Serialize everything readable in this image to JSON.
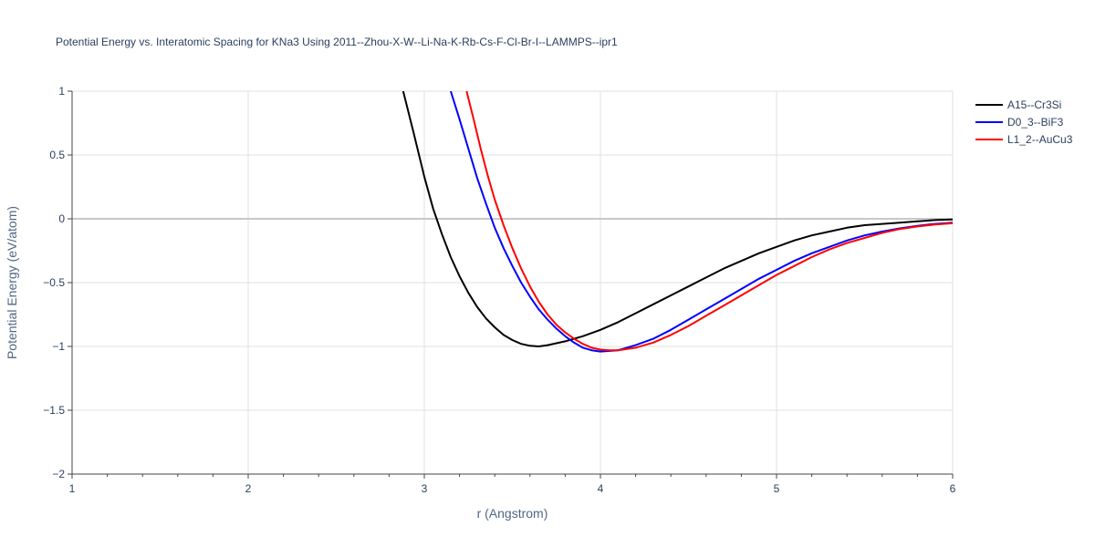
{
  "chart_data": {
    "type": "line",
    "title": "Potential Energy vs. Interatomic Spacing for KNa3 Using 2011--Zhou-X-W--Li-Na-K-Rb-Cs-F-Cl-Br-I--LAMMPS--ipr1",
    "xlabel": "r (Angstrom)",
    "ylabel": "Potential Energy (eV/atom)",
    "xlim": [
      1,
      6
    ],
    "ylim": [
      -2,
      1
    ],
    "xticks": [
      1,
      2,
      3,
      4,
      5,
      6
    ],
    "xtick_labels": [
      "1",
      "2",
      "3",
      "4",
      "5",
      "6"
    ],
    "yticks": [
      -2,
      -1.5,
      -1,
      -0.5,
      0,
      0.5,
      1
    ],
    "ytick_labels": [
      "−2",
      "−1.5",
      "−1",
      "−0.5",
      "0",
      "0.5",
      "1"
    ],
    "grid": true,
    "legend_position": "top-right",
    "series": [
      {
        "name": "A15--Cr3Si",
        "color": "#000000",
        "x": [
          2.88,
          2.94,
          3.0,
          3.05,
          3.1,
          3.15,
          3.2,
          3.25,
          3.3,
          3.35,
          3.4,
          3.45,
          3.5,
          3.55,
          3.6,
          3.65,
          3.7,
          3.8,
          3.9,
          4.0,
          4.1,
          4.2,
          4.3,
          4.4,
          4.5,
          4.6,
          4.7,
          4.8,
          4.9,
          5.0,
          5.1,
          5.2,
          5.3,
          5.4,
          5.5,
          5.6,
          5.7,
          5.8,
          5.9,
          6.0
        ],
        "y": [
          1.0,
          0.67,
          0.33,
          0.08,
          -0.12,
          -0.3,
          -0.45,
          -0.58,
          -0.69,
          -0.78,
          -0.85,
          -0.91,
          -0.95,
          -0.98,
          -0.995,
          -1.0,
          -0.99,
          -0.96,
          -0.92,
          -0.87,
          -0.81,
          -0.74,
          -0.67,
          -0.6,
          -0.53,
          -0.46,
          -0.39,
          -0.33,
          -0.27,
          -0.22,
          -0.17,
          -0.13,
          -0.1,
          -0.07,
          -0.05,
          -0.04,
          -0.03,
          -0.02,
          -0.01,
          -0.005
        ]
      },
      {
        "name": "D0_3--BiF3",
        "color": "#0000ff",
        "x": [
          3.15,
          3.2,
          3.25,
          3.3,
          3.35,
          3.4,
          3.45,
          3.5,
          3.55,
          3.6,
          3.65,
          3.7,
          3.75,
          3.8,
          3.85,
          3.9,
          3.95,
          4.0,
          4.1,
          4.2,
          4.3,
          4.4,
          4.5,
          4.6,
          4.7,
          4.8,
          4.9,
          5.0,
          5.1,
          5.2,
          5.3,
          5.4,
          5.5,
          5.6,
          5.7,
          5.8,
          5.9,
          6.0
        ],
        "y": [
          1.0,
          0.78,
          0.55,
          0.32,
          0.12,
          -0.07,
          -0.23,
          -0.37,
          -0.5,
          -0.61,
          -0.71,
          -0.79,
          -0.86,
          -0.92,
          -0.97,
          -1.01,
          -1.03,
          -1.04,
          -1.03,
          -0.99,
          -0.94,
          -0.87,
          -0.79,
          -0.71,
          -0.63,
          -0.55,
          -0.47,
          -0.4,
          -0.33,
          -0.27,
          -0.22,
          -0.17,
          -0.13,
          -0.1,
          -0.075,
          -0.055,
          -0.04,
          -0.03
        ]
      },
      {
        "name": "L1_2--AuCu3",
        "color": "#ff0000",
        "x": [
          3.24,
          3.28,
          3.32,
          3.36,
          3.4,
          3.45,
          3.5,
          3.55,
          3.6,
          3.65,
          3.7,
          3.75,
          3.8,
          3.85,
          3.9,
          3.95,
          4.0,
          4.05,
          4.1,
          4.2,
          4.3,
          4.4,
          4.5,
          4.6,
          4.7,
          4.8,
          4.9,
          5.0,
          5.1,
          5.2,
          5.3,
          5.4,
          5.5,
          5.6,
          5.7,
          5.8,
          5.9,
          6.0
        ],
        "y": [
          1.0,
          0.78,
          0.55,
          0.34,
          0.15,
          -0.05,
          -0.23,
          -0.39,
          -0.53,
          -0.65,
          -0.75,
          -0.83,
          -0.89,
          -0.94,
          -0.98,
          -1.01,
          -1.025,
          -1.03,
          -1.03,
          -1.01,
          -0.97,
          -0.91,
          -0.84,
          -0.76,
          -0.68,
          -0.6,
          -0.52,
          -0.44,
          -0.37,
          -0.3,
          -0.24,
          -0.19,
          -0.15,
          -0.11,
          -0.08,
          -0.06,
          -0.045,
          -0.035
        ]
      }
    ]
  }
}
